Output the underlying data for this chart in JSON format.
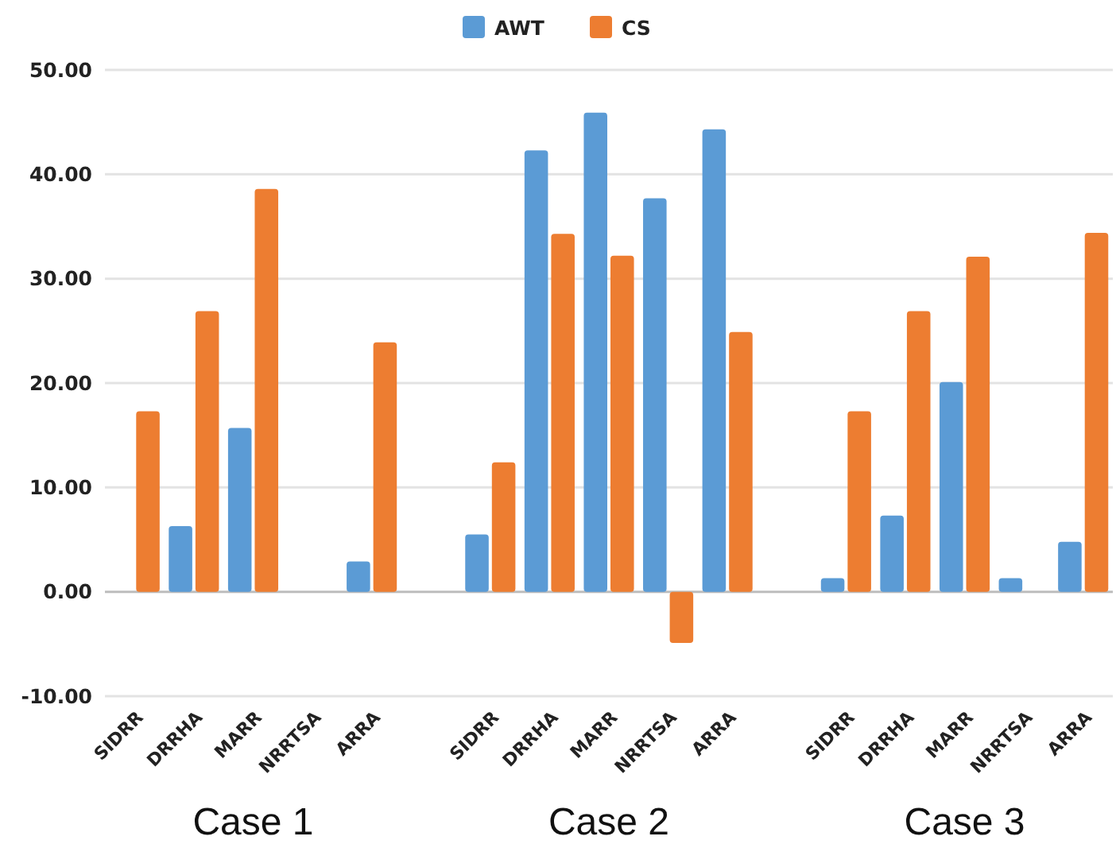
{
  "chart_data": {
    "type": "bar",
    "categories": [
      "SIDRR",
      "DRRHA",
      "MARR",
      "NRRTSA",
      "ARRA",
      null,
      "SIDRR",
      "DRRHA",
      "MARR",
      "NRRTSA",
      "ARRA",
      null,
      "SIDRR",
      "DRRHA",
      "MARR",
      "NRRTSA",
      "ARRA"
    ],
    "series": [
      {
        "name": "AWT",
        "color": "#5b9bd5",
        "values": [
          null,
          6.3,
          15.7,
          null,
          2.9,
          null,
          5.5,
          42.3,
          45.9,
          37.7,
          44.3,
          null,
          1.3,
          7.3,
          20.1,
          1.3,
          4.8
        ]
      },
      {
        "name": "CS",
        "color": "#ed7d31",
        "values": [
          17.3,
          26.9,
          38.6,
          null,
          23.9,
          null,
          12.4,
          34.3,
          32.2,
          -4.9,
          24.9,
          null,
          17.3,
          26.9,
          32.1,
          null,
          34.4
        ]
      }
    ],
    "ylim": [
      -10,
      50
    ],
    "yticks": [
      {
        "value": -10,
        "label": "-10.00"
      },
      {
        "value": 0,
        "label": "0.00"
      },
      {
        "value": 10,
        "label": "10.00"
      },
      {
        "value": 20,
        "label": "20.00"
      },
      {
        "value": 30,
        "label": "30.00"
      },
      {
        "value": 40,
        "label": "40.00"
      },
      {
        "value": 50,
        "label": "50.00"
      }
    ],
    "grid": "y",
    "legend": "top",
    "annotations": [
      "Case 1",
      "Case 2",
      "Case 3"
    ]
  }
}
